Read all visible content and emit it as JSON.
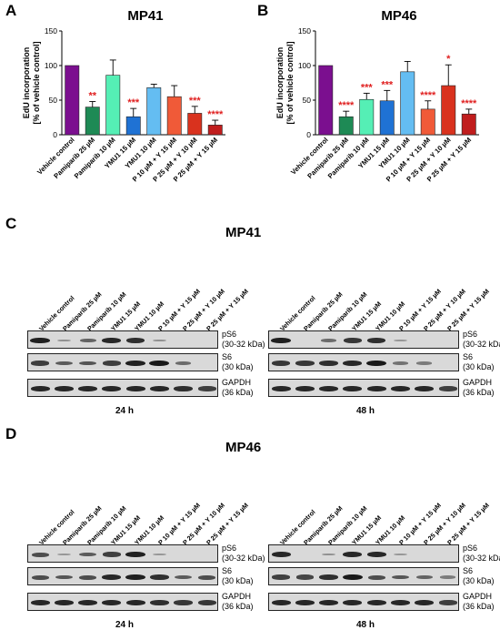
{
  "panels": {
    "A": "A",
    "B": "B",
    "C": "C",
    "D": "D"
  },
  "chart_data": [
    {
      "type": "bar",
      "title": "MP41",
      "ylabel": "EdU incorporation\n[% of vehicle control]",
      "ylim": [
        0,
        150
      ],
      "yticks": [
        "0",
        "50",
        "100",
        "150"
      ],
      "categories": [
        "Vehicle control",
        "Pamiparib 25 µM",
        "Pamiparib 10 µM",
        "YMU1 15 µM",
        "YMU1 10 µM",
        "P 10 µM + Y 15 µM",
        "P 25 µM + Y 10 µM",
        "P 25 µM + Y 15 µM"
      ],
      "values": [
        100,
        40,
        86,
        26,
        68,
        55,
        31,
        14
      ],
      "errors": [
        0,
        8,
        22,
        12,
        5,
        16,
        10,
        7
      ],
      "colors": [
        "#7b0f8f",
        "#1e8a55",
        "#55efb5",
        "#1f72d4",
        "#64bdf2",
        "#f05a38",
        "#d9321e",
        "#c01d1d"
      ],
      "significance": [
        "",
        "**",
        "",
        "***",
        "",
        "",
        "***",
        "****"
      ]
    },
    {
      "type": "bar",
      "title": "MP46",
      "ylabel": "EdU incorporation\n[% of vehicle control]",
      "ylim": [
        0,
        150
      ],
      "yticks": [
        "0",
        "50",
        "100",
        "150"
      ],
      "categories": [
        "Vehicle control",
        "Pamiparib 25 µM",
        "Pamiparib 10 µM",
        "YMU1 15 µM",
        "YMU1 10 µM",
        "P 10 µM + Y 15 µM",
        "P 25 µM + Y 10 µM",
        "P 25 µM + Y 15 µM"
      ],
      "values": [
        100,
        26,
        51,
        49,
        91,
        37,
        71,
        30
      ],
      "errors": [
        0,
        8,
        9,
        15,
        15,
        12,
        30,
        7
      ],
      "colors": [
        "#7b0f8f",
        "#1e8a55",
        "#55efb5",
        "#1f72d4",
        "#64bdf2",
        "#f05a38",
        "#d9321e",
        "#c01d1d"
      ],
      "significance": [
        "",
        "****",
        "***",
        "***",
        "",
        "****",
        "*",
        "****"
      ]
    }
  ],
  "blots": {
    "C": {
      "title": "MP41",
      "lanes": [
        "Vehicle control",
        "Pamiparib 25 µM",
        "Pamiparib 10 µM",
        "YMU1 15 µM",
        "YMU1 10 µM",
        "P 10 µM + Y 15 µM",
        "P 25 µM + Y 10 µM",
        "P 25 µM + Y 15 µM"
      ],
      "bands": {
        "pS6_label": "pS6\n(30-32 kDa)",
        "S6_label": "S6\n(30 kDa)",
        "GAPDH_label": "GAPDH\n(36 kDa)"
      },
      "time_24": "24 h",
      "time_48": "48 h",
      "intensity_24": {
        "pS6": [
          0.9,
          0.15,
          0.45,
          0.85,
          0.8,
          0.15,
          0.05,
          0.05
        ],
        "S6": [
          0.7,
          0.5,
          0.55,
          0.7,
          0.9,
          0.95,
          0.4,
          0.05
        ],
        "GAPDH": [
          0.85,
          0.85,
          0.85,
          0.85,
          0.85,
          0.85,
          0.8,
          0.7
        ]
      },
      "intensity_48": {
        "pS6": [
          0.9,
          0.05,
          0.4,
          0.75,
          0.8,
          0.1,
          0.05,
          0.05
        ],
        "S6": [
          0.75,
          0.75,
          0.8,
          0.85,
          0.95,
          0.35,
          0.3,
          0.05
        ],
        "GAPDH": [
          0.85,
          0.85,
          0.85,
          0.85,
          0.85,
          0.85,
          0.85,
          0.7
        ]
      }
    },
    "D": {
      "title": "MP46",
      "lanes": [
        "Vehicle control",
        "Pamiparib 25 µM",
        "Pamiparib 10 µM",
        "YMU1 15 µM",
        "YMU1 10 µM",
        "P 10 µM + Y 15 µM",
        "P 25 µM + Y 10 µM",
        "P 25 µM + Y 15 µM"
      ],
      "bands": {
        "pS6_label": "pS6\n(30-32 kDa)",
        "S6_label": "S6\n(30 kDa)",
        "GAPDH_label": "GAPDH\n(36 kDa)"
      },
      "time_24": "24 h",
      "time_48": "48 h",
      "intensity_24": {
        "pS6": [
          0.6,
          0.1,
          0.5,
          0.7,
          0.9,
          0.1,
          0.05,
          0.05
        ],
        "S6": [
          0.6,
          0.55,
          0.6,
          0.85,
          0.9,
          0.8,
          0.5,
          0.6
        ],
        "GAPDH": [
          0.85,
          0.85,
          0.85,
          0.85,
          0.85,
          0.8,
          0.75,
          0.75
        ]
      },
      "intensity_48": {
        "pS6": [
          0.85,
          0.05,
          0.15,
          0.85,
          0.85,
          0.1,
          0.05,
          0.05
        ],
        "S6": [
          0.7,
          0.65,
          0.8,
          0.95,
          0.6,
          0.55,
          0.45,
          0.3
        ],
        "GAPDH": [
          0.85,
          0.85,
          0.85,
          0.85,
          0.85,
          0.85,
          0.85,
          0.7
        ]
      }
    }
  }
}
